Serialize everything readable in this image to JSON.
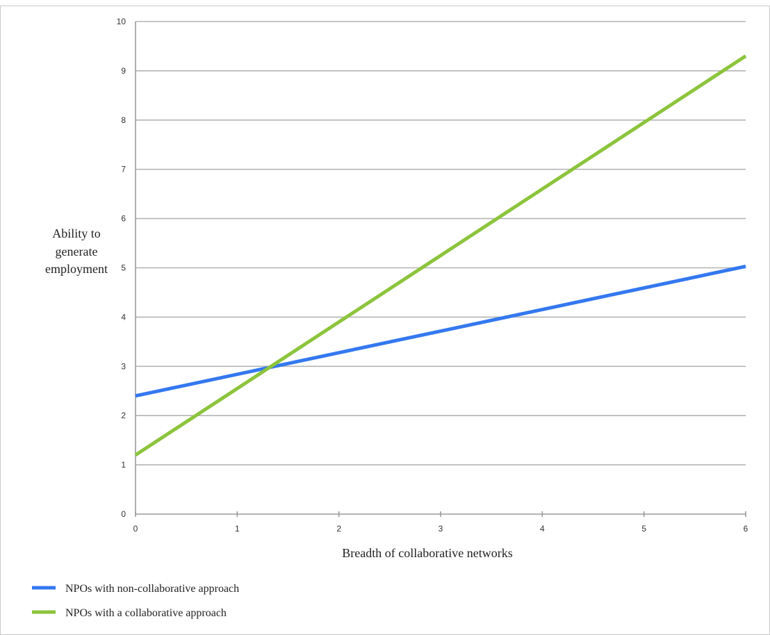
{
  "chart_data": {
    "type": "line",
    "title": "",
    "xlabel": "Breadth of collaborative networks",
    "ylabel": [
      "Ability to",
      "generate",
      "employment"
    ],
    "xlim": [
      0,
      6
    ],
    "ylim": [
      0,
      10
    ],
    "x_ticks": [
      0,
      1,
      2,
      3,
      4,
      5,
      6
    ],
    "y_ticks": [
      0,
      1,
      2,
      3,
      4,
      5,
      6,
      7,
      8,
      9,
      10
    ],
    "grid": "horizontal",
    "legend_position": "bottom-left",
    "series": [
      {
        "name": "NPOs with non-collaborative approach",
        "color": "#3478f0",
        "x": [
          0,
          6
        ],
        "y": [
          2.4,
          5.03
        ]
      },
      {
        "name": "NPOs with a collaborative approach",
        "color": "#8cc43c",
        "x": [
          0,
          6
        ],
        "y": [
          1.2,
          9.3
        ]
      }
    ]
  }
}
